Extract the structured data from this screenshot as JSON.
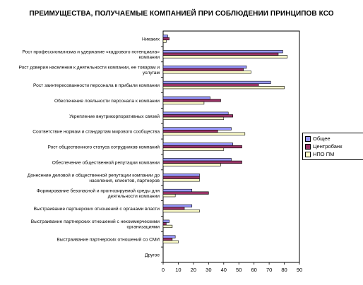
{
  "colors": {
    "general": "#9999ff",
    "centrobank": "#993366",
    "npo": "#ffffcc",
    "axis": "#000000",
    "grid": "#000000"
  },
  "chart_data": {
    "type": "bar",
    "orientation": "horizontal",
    "title": "ПРЕИМУЩЕСТВА, ПОЛУЧАЕМЫЕ КОМПАНИЕЙ ПРИ СОБЛЮДЕНИИ ПРИНЦИПОВ КСО",
    "categories": [
      "Никаких",
      "Рост профессионализма и удержание «кадрового потенциала» компании",
      "Рост доверия населения к деятельности компании, ее товарам и услугам",
      "Рост заинтересованности персонала в прибыли компании",
      "Обеспечение лояльности персонала к компании",
      "Укрепление внутрикорпоративных связей",
      "Соответствие нормам и стандартам мирового сообщества",
      "Рост общественного статуса сотрудников компаний",
      "Обеспечение общественной репутации компании",
      "Донесение деловой и общественной репутации компании до населения, клиентов, партнеров",
      "Формирование безопасной и прогнозируемой среды для деятельности компании",
      "Выстраивание партнерских отношений с органами власти",
      "Выстраивание партнерских отношений с некоммерческими организациями",
      "Выстраивание партнерских отношений со СМИ",
      "Другое"
    ],
    "series": [
      {
        "name": "Общее",
        "values": [
          3,
          79,
          55,
          71,
          31,
          43,
          45,
          46,
          45,
          24,
          19,
          19,
          4,
          8,
          0
        ]
      },
      {
        "name": "Центробанк",
        "values": [
          4,
          76,
          53,
          63,
          38,
          46,
          36,
          52,
          52,
          24,
          30,
          14,
          2,
          6,
          0
        ]
      },
      {
        "name": "НПО ПМ",
        "values": [
          2,
          82,
          58,
          80,
          27,
          40,
          54,
          40,
          38,
          24,
          8,
          24,
          6,
          10,
          0
        ]
      }
    ],
    "xlim": [
      0,
      90
    ],
    "xticks": [
      "0",
      "10",
      "20",
      "30",
      "40",
      "50",
      "60",
      "70",
      "80",
      "90"
    ],
    "xlabel": "",
    "ylabel": "",
    "grid": false,
    "legend_position": "right"
  }
}
